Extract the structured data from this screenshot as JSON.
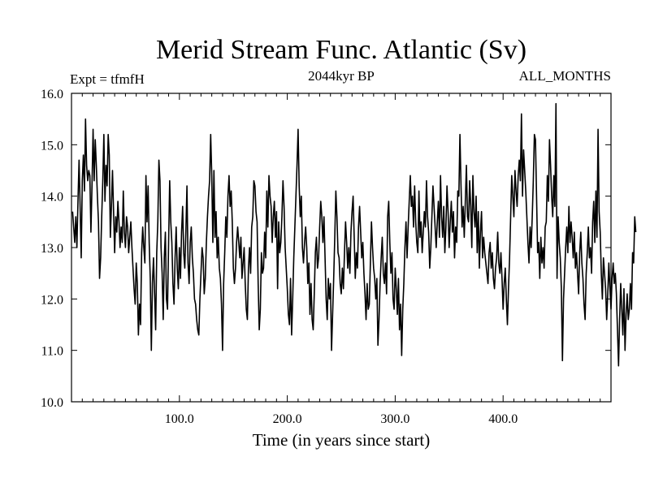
{
  "chart_data": {
    "type": "line",
    "title": "Merid Stream Func. Atlantic (Sv)",
    "subtitle_left": "Expt = tfmfH",
    "subtitle_center": "2044kyr BP",
    "subtitle_right": "ALL_MONTHS",
    "xlabel": "Time (in years since start)",
    "ylabel": "",
    "xlim": [
      0,
      500
    ],
    "ylim": [
      10.0,
      16.0
    ],
    "xticks": [
      100,
      200,
      300,
      400
    ],
    "xtick_labels": [
      "100.0",
      "200.0",
      "300.0",
      "400.0"
    ],
    "yticks": [
      10,
      11,
      12,
      13,
      14,
      15,
      16
    ],
    "ytick_labels": [
      "10.0",
      "11.0",
      "12.0",
      "13.0",
      "14.0",
      "15.0",
      "16.0"
    ],
    "grid": false,
    "series": [
      {
        "name": "Merid Stream Func. Atlantic",
        "x_start": 1,
        "x_step": 1,
        "values": [
          13.7,
          13.4,
          13.1,
          13.6,
          13.0,
          13.9,
          14.7,
          13.8,
          12.8,
          14.3,
          14.8,
          14.1,
          15.5,
          14.6,
          14.3,
          14.5,
          14.4,
          13.3,
          14.2,
          15.3,
          14.3,
          15.1,
          14.6,
          14.0,
          13.5,
          12.4,
          12.8,
          13.6,
          14.3,
          15.2,
          13.9,
          14.6,
          14.2,
          15.2,
          14.8,
          13.2,
          13.8,
          14.5,
          13.7,
          12.9,
          13.6,
          13.3,
          13.9,
          13.5,
          13.0,
          13.4,
          13.1,
          14.1,
          13.3,
          13.0,
          13.6,
          13.4,
          12.9,
          13.2,
          13.5,
          13.0,
          12.6,
          12.2,
          11.9,
          12.7,
          12.3,
          11.3,
          11.9,
          11.5,
          12.9,
          13.4,
          13.0,
          12.7,
          14.4,
          13.5,
          14.2,
          13.1,
          12.4,
          11.0,
          12.3,
          12.8,
          12.1,
          11.4,
          12.9,
          13.5,
          14.7,
          14.3,
          13.0,
          12.5,
          11.6,
          12.8,
          13.3,
          12.0,
          11.8,
          13.1,
          14.3,
          13.5,
          13.1,
          12.3,
          11.9,
          12.8,
          13.4,
          12.6,
          12.2,
          13.0,
          12.4,
          13.3,
          13.8,
          12.9,
          12.6,
          13.3,
          14.2,
          12.7,
          12.3,
          13.1,
          13.4,
          12.8,
          12.5,
          12.0,
          11.9,
          11.6,
          11.4,
          11.3,
          12.0,
          12.5,
          13.0,
          12.8,
          12.1,
          12.4,
          13.1,
          13.6,
          14.0,
          14.3,
          15.2,
          14.4,
          13.1,
          14.5,
          13.2,
          13.7,
          12.8,
          13.2,
          12.6,
          12.4,
          11.9,
          11.0,
          12.3,
          12.9,
          13.6,
          13.2,
          14.0,
          14.4,
          13.8,
          14.1,
          13.5,
          12.6,
          12.3,
          12.6,
          13.1,
          13.4,
          13.1,
          12.8,
          13.2,
          12.4,
          12.7,
          13.0,
          12.3,
          11.8,
          11.6,
          12.6,
          13.0,
          12.5,
          13.4,
          13.6,
          14.3,
          14.2,
          13.7,
          13.5,
          12.3,
          11.4,
          11.8,
          12.9,
          12.5,
          12.6,
          13.3,
          12.8,
          14.1,
          13.4,
          14.4,
          14.0,
          13.8,
          13.1,
          13.6,
          13.9,
          13.2,
          13.7,
          12.2,
          13.5,
          12.9,
          13.1,
          13.6,
          14.3,
          13.8,
          13.0,
          12.6,
          12.2,
          11.7,
          11.5,
          12.4,
          11.3,
          12.0,
          12.8,
          13.4,
          14.0,
          14.6,
          15.3,
          14.2,
          13.6,
          14.0,
          13.0,
          12.7,
          13.1,
          13.4,
          13.0,
          12.3,
          12.7,
          11.7,
          12.3,
          11.6,
          11.4,
          12.1,
          12.9,
          13.2,
          12.6,
          12.8,
          13.4,
          13.9,
          13.6,
          13.1,
          13.6,
          12.8,
          12.0,
          11.6,
          12.4,
          12.0,
          12.3,
          11.0,
          11.7,
          12.4,
          13.2,
          14.1,
          13.6,
          12.9,
          12.8,
          12.3,
          12.1,
          12.6,
          12.2,
          12.9,
          13.5,
          13.1,
          12.6,
          13.0,
          12.5,
          13.3,
          13.7,
          14.0,
          13.2,
          12.4,
          12.9,
          12.6,
          13.4,
          13.8,
          13.3,
          12.8,
          13.1,
          12.5,
          12.1,
          11.6,
          12.3,
          11.8,
          11.9,
          12.7,
          13.5,
          13.0,
          12.6,
          12.4,
          12.0,
          12.4,
          11.1,
          11.6,
          12.3,
          12.8,
          13.2,
          12.5,
          12.3,
          12.7,
          12.1,
          13.6,
          13.9,
          13.1,
          12.5,
          12.9,
          12.0,
          11.8,
          12.6,
          12.2,
          11.7,
          12.4,
          11.4,
          11.9,
          10.9,
          11.8,
          12.3,
          13.0,
          13.5,
          12.8,
          13.4,
          13.9,
          14.4,
          13.8,
          14.0,
          13.4,
          14.2,
          13.5,
          13.1,
          12.9,
          14.1,
          13.2,
          13.5,
          12.9,
          13.3,
          13.7,
          13.4,
          14.3,
          13.6,
          13.3,
          12.6,
          13.0,
          13.6,
          14.2,
          13.8,
          13.4,
          13.0,
          13.5,
          13.9,
          13.2,
          14.4,
          13.6,
          13.2,
          13.8,
          12.9,
          13.4,
          14.2,
          13.7,
          13.0,
          13.5,
          13.9,
          13.3,
          13.7,
          12.8,
          13.4,
          13.1,
          14.1,
          14.0,
          15.2,
          14.2,
          13.4,
          13.8,
          13.2,
          13.9,
          14.6,
          13.6,
          13.5,
          14.3,
          13.8,
          13.0,
          14.4,
          13.7,
          13.4,
          14.0,
          12.9,
          13.7,
          12.6,
          13.3,
          13.7,
          12.8,
          13.2,
          12.9,
          12.7,
          12.5,
          12.3,
          12.9,
          13.1,
          12.6,
          12.9,
          12.4,
          12.2,
          12.6,
          12.8,
          13.3,
          12.7,
          12.5,
          12.9,
          12.4,
          11.8,
          12.3,
          12.6,
          12.0,
          11.5,
          12.2,
          12.8,
          13.6,
          14.4,
          14.0,
          13.6,
          14.5,
          14.1,
          13.8,
          14.4,
          14.7,
          14.3,
          15.6,
          14.0,
          14.9,
          14.5,
          14.1,
          13.6,
          13.1,
          12.7,
          13.4,
          13.0,
          13.6,
          14.3,
          15.2,
          15.1,
          14.0,
          12.9,
          13.1,
          12.4,
          13.2,
          12.7,
          13.0,
          12.6,
          13.4,
          13.5,
          14.4,
          13.9,
          15.1,
          14.6,
          14.0,
          13.6,
          14.4,
          13.8,
          15.8,
          12.4,
          13.6,
          13.1,
          12.8,
          12.2,
          10.8,
          12.0,
          12.5,
          13.0,
          13.4,
          12.9,
          13.8,
          13.1,
          13.5,
          13.2,
          12.8,
          13.3,
          12.6,
          12.9,
          12.5,
          12.1,
          12.9,
          13.3,
          12.7,
          12.4,
          11.9,
          11.6,
          12.5,
          12.9,
          13.4,
          12.8,
          13.0,
          12.5,
          13.5,
          13.9,
          13.1,
          14.1,
          13.2,
          15.3,
          13.7,
          13.3,
          12.5,
          12.0,
          12.8,
          12.5,
          12.2,
          11.6,
          12.1,
          12.7,
          12.2,
          11.8,
          12.4,
          12.7,
          12.3,
          12.5,
          12.1,
          11.4,
          10.7,
          11.6,
          12.3,
          11.8,
          11.3,
          12.2,
          11.0,
          11.7,
          12.1,
          11.6,
          11.8,
          12.3,
          11.8,
          12.9,
          12.7,
          13.6,
          13.3
        ]
      }
    ]
  }
}
